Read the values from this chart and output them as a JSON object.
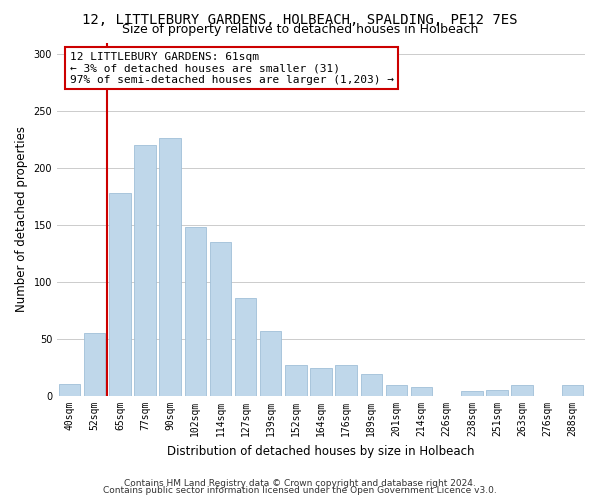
{
  "title": "12, LITTLEBURY GARDENS, HOLBEACH, SPALDING, PE12 7ES",
  "subtitle": "Size of property relative to detached houses in Holbeach",
  "xlabel": "Distribution of detached houses by size in Holbeach",
  "ylabel": "Number of detached properties",
  "bar_labels": [
    "40sqm",
    "52sqm",
    "65sqm",
    "77sqm",
    "90sqm",
    "102sqm",
    "114sqm",
    "127sqm",
    "139sqm",
    "152sqm",
    "164sqm",
    "176sqm",
    "189sqm",
    "201sqm",
    "214sqm",
    "226sqm",
    "238sqm",
    "251sqm",
    "263sqm",
    "276sqm",
    "288sqm"
  ],
  "bar_values": [
    11,
    55,
    178,
    220,
    226,
    148,
    135,
    86,
    57,
    27,
    25,
    27,
    19,
    10,
    8,
    0,
    4,
    5,
    10,
    0,
    10
  ],
  "bar_color": "#bfd7ea",
  "bar_edge_color": "#a0c0d8",
  "vline_color": "#cc0000",
  "vline_x": 1.5,
  "annotation_text": "12 LITTLEBURY GARDENS: 61sqm\n← 3% of detached houses are smaller (31)\n97% of semi-detached houses are larger (1,203) →",
  "annotation_box_facecolor": "white",
  "annotation_box_edgecolor": "#cc0000",
  "ylim": [
    0,
    310
  ],
  "yticks": [
    0,
    50,
    100,
    150,
    200,
    250,
    300
  ],
  "footer_line1": "Contains HM Land Registry data © Crown copyright and database right 2024.",
  "footer_line2": "Contains public sector information licensed under the Open Government Licence v3.0.",
  "bg_color": "#ffffff",
  "plot_bg_color": "#ffffff",
  "grid_color": "#cccccc",
  "title_fontsize": 10,
  "subtitle_fontsize": 9,
  "axis_label_fontsize": 8.5,
  "tick_fontsize": 7,
  "annotation_fontsize": 8,
  "footer_fontsize": 6.5
}
